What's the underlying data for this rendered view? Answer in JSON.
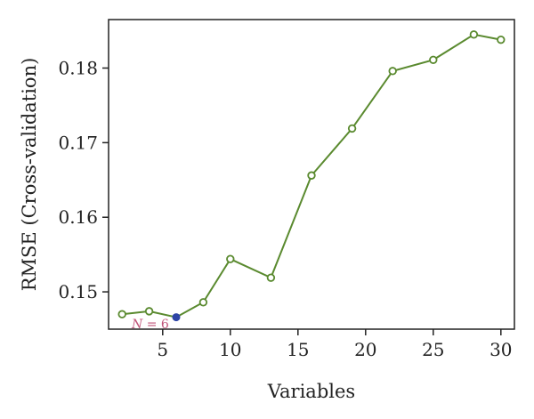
{
  "chart_data": {
    "type": "line",
    "xlabel": "Variables",
    "ylabel": "RMSE (Cross-validation)",
    "xlim": [
      1,
      31
    ],
    "ylim": [
      0.145,
      0.1865
    ],
    "x_ticks": [
      5,
      10,
      15,
      20,
      25,
      30
    ],
    "x_tick_labels": [
      "5",
      "10",
      "15",
      "20",
      "25",
      "30"
    ],
    "y_ticks": [
      0.15,
      0.16,
      0.17,
      0.18
    ],
    "y_tick_labels": [
      "0.15",
      "0.16",
      "0.17",
      "0.18"
    ],
    "grid": false,
    "series": [
      {
        "x": [
          2,
          4,
          6,
          8,
          10,
          13,
          16,
          19,
          22,
          25,
          28,
          30
        ],
        "y": [
          0.147,
          0.1474,
          0.1466,
          0.1486,
          0.1544,
          0.1519,
          0.1656,
          0.1719,
          0.1796,
          0.1811,
          0.1845,
          0.1838
        ],
        "color": "#5a8a2f"
      }
    ],
    "highlight": {
      "x": 6,
      "y": 0.1466,
      "color": "#2e45a6",
      "annotation_prefix": "N",
      "annotation_suffix": " = 6"
    }
  }
}
